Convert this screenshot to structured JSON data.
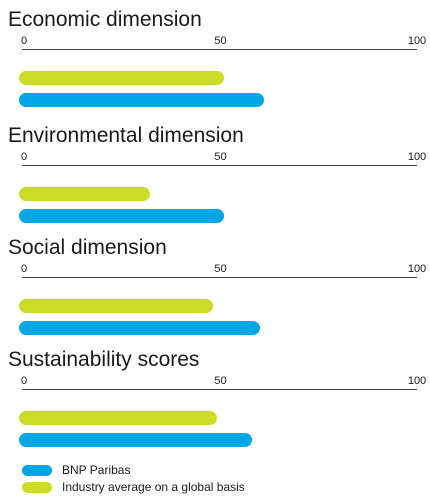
{
  "colors": {
    "bnp": "#00a5e3",
    "industry": "#cddc29"
  },
  "chart_data": {
    "type": "bar",
    "orientation": "horizontal",
    "xlim": [
      0,
      100
    ],
    "ticks": [
      "0",
      "50",
      "100"
    ],
    "panels": [
      {
        "title": "Economic dimension",
        "industry": 51,
        "bnp": 61
      },
      {
        "title": "Environmental dimension",
        "industry": 32,
        "bnp": 51
      },
      {
        "title": "Social dimension",
        "industry": 48,
        "bnp": 60
      },
      {
        "title": "Sustainability scores",
        "industry": 49,
        "bnp": 58
      }
    ],
    "series": [
      {
        "name": "BNP Paribas",
        "color": "#00a5e3"
      },
      {
        "name": "Industry average on a global basis",
        "color": "#cddc29"
      }
    ],
    "legend_position": "bottom-left"
  }
}
